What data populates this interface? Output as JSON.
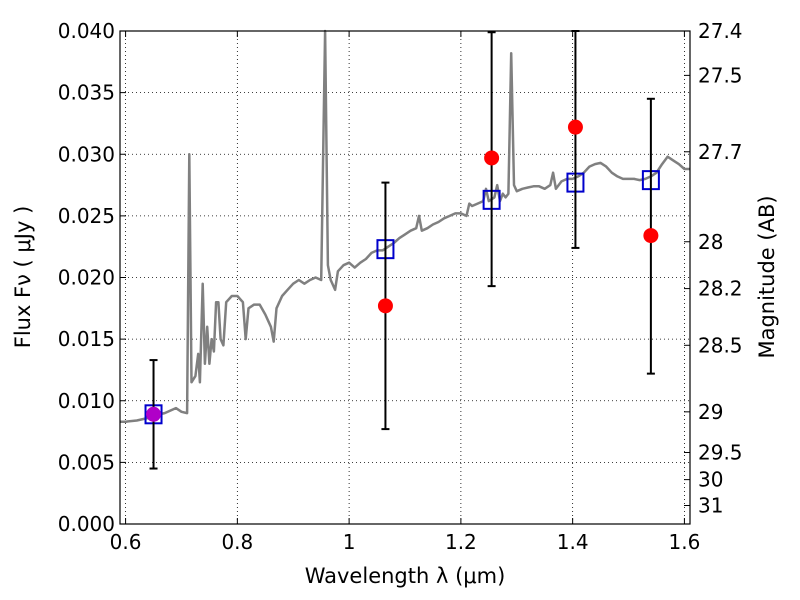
{
  "chart_data": {
    "type": "scatter",
    "xlabel": "Wavelength  λ (μm)",
    "ylabel": "Flux  Fν  ( μJy )",
    "ylabel_right": "Magnitude (AB)",
    "xlim": [
      0.59,
      1.61
    ],
    "ylim": [
      0.0,
      0.04
    ],
    "x_ticks": [
      0.6,
      0.8,
      1.0,
      1.2,
      1.4,
      1.6
    ],
    "x_tick_labels": [
      "0.6",
      "0.8",
      "1",
      "1.2",
      "1.4",
      "1.6"
    ],
    "y_ticks": [
      0.0,
      0.005,
      0.01,
      0.015,
      0.02,
      0.025,
      0.03,
      0.035,
      0.04
    ],
    "y_tick_labels": [
      "0.000",
      "0.005",
      "0.010",
      "0.015",
      "0.020",
      "0.025",
      "0.030",
      "0.035",
      "0.040"
    ],
    "mag_ticks": [
      {
        "label": "27.4",
        "flux": 0.04
      },
      {
        "label": "27.5",
        "flux": 0.0364
      },
      {
        "label": "27.7",
        "flux": 0.0302
      },
      {
        "label": "28",
        "flux": 0.0229
      },
      {
        "label": "28.2",
        "flux": 0.0191
      },
      {
        "label": "28.5",
        "flux": 0.0145
      },
      {
        "label": "29",
        "flux": 0.0091
      },
      {
        "label": "29.5",
        "flux": 0.0058
      },
      {
        "label": "30",
        "flux": 0.0036
      },
      {
        "label": "31",
        "flux": 0.0015
      }
    ],
    "grid": true,
    "series": [
      {
        "kind": "line",
        "color": "#808080",
        "points": [
          [
            0.59,
            0.0083
          ],
          [
            0.6,
            0.0083
          ],
          [
            0.62,
            0.0084
          ],
          [
            0.64,
            0.0086
          ],
          [
            0.65,
            0.0088
          ],
          [
            0.67,
            0.009
          ],
          [
            0.68,
            0.0092
          ],
          [
            0.69,
            0.0094
          ],
          [
            0.7,
            0.0091
          ],
          [
            0.71,
            0.009
          ],
          [
            0.714,
            0.03
          ],
          [
            0.718,
            0.0115
          ],
          [
            0.725,
            0.012
          ],
          [
            0.73,
            0.0138
          ],
          [
            0.733,
            0.0115
          ],
          [
            0.738,
            0.0195
          ],
          [
            0.742,
            0.013
          ],
          [
            0.746,
            0.016
          ],
          [
            0.75,
            0.013
          ],
          [
            0.754,
            0.015
          ],
          [
            0.758,
            0.014
          ],
          [
            0.762,
            0.018
          ],
          [
            0.766,
            0.018
          ],
          [
            0.77,
            0.015
          ],
          [
            0.775,
            0.0145
          ],
          [
            0.78,
            0.018
          ],
          [
            0.79,
            0.0185
          ],
          [
            0.8,
            0.0185
          ],
          [
            0.81,
            0.018
          ],
          [
            0.815,
            0.015
          ],
          [
            0.82,
            0.0175
          ],
          [
            0.83,
            0.0178
          ],
          [
            0.84,
            0.0178
          ],
          [
            0.85,
            0.017
          ],
          [
            0.86,
            0.016
          ],
          [
            0.865,
            0.0148
          ],
          [
            0.87,
            0.0175
          ],
          [
            0.88,
            0.0185
          ],
          [
            0.89,
            0.019
          ],
          [
            0.9,
            0.0195
          ],
          [
            0.91,
            0.0198
          ],
          [
            0.92,
            0.0195
          ],
          [
            0.93,
            0.0198
          ],
          [
            0.94,
            0.02
          ],
          [
            0.95,
            0.0198
          ],
          [
            0.957,
            0.04
          ],
          [
            0.962,
            0.021
          ],
          [
            0.967,
            0.0198
          ],
          [
            0.975,
            0.019
          ],
          [
            0.98,
            0.0205
          ],
          [
            0.99,
            0.021
          ],
          [
            1.0,
            0.0212
          ],
          [
            1.01,
            0.0208
          ],
          [
            1.02,
            0.0212
          ],
          [
            1.03,
            0.0215
          ],
          [
            1.04,
            0.022
          ],
          [
            1.05,
            0.0222
          ],
          [
            1.06,
            0.0222
          ],
          [
            1.07,
            0.0225
          ],
          [
            1.08,
            0.0228
          ],
          [
            1.09,
            0.0232
          ],
          [
            1.1,
            0.0235
          ],
          [
            1.11,
            0.0238
          ],
          [
            1.12,
            0.024
          ],
          [
            1.125,
            0.025
          ],
          [
            1.13,
            0.0238
          ],
          [
            1.14,
            0.024
          ],
          [
            1.15,
            0.0243
          ],
          [
            1.16,
            0.0245
          ],
          [
            1.17,
            0.0248
          ],
          [
            1.18,
            0.025
          ],
          [
            1.19,
            0.0252
          ],
          [
            1.2,
            0.0252
          ],
          [
            1.21,
            0.025
          ],
          [
            1.215,
            0.026
          ],
          [
            1.22,
            0.0258
          ],
          [
            1.23,
            0.026
          ],
          [
            1.24,
            0.0262
          ],
          [
            1.245,
            0.0272
          ],
          [
            1.25,
            0.0262
          ],
          [
            1.26,
            0.0265
          ],
          [
            1.265,
            0.0275
          ],
          [
            1.27,
            0.0262
          ],
          [
            1.275,
            0.0268
          ],
          [
            1.28,
            0.0265
          ],
          [
            1.285,
            0.0268
          ],
          [
            1.29,
            0.0382
          ],
          [
            1.295,
            0.0275
          ],
          [
            1.3,
            0.027
          ],
          [
            1.31,
            0.0272
          ],
          [
            1.32,
            0.0273
          ],
          [
            1.33,
            0.0274
          ],
          [
            1.34,
            0.0274
          ],
          [
            1.35,
            0.0272
          ],
          [
            1.36,
            0.0275
          ],
          [
            1.365,
            0.0285
          ],
          [
            1.37,
            0.0272
          ],
          [
            1.38,
            0.0278
          ],
          [
            1.39,
            0.028
          ],
          [
            1.4,
            0.028
          ],
          [
            1.41,
            0.0282
          ],
          [
            1.42,
            0.0285
          ],
          [
            1.43,
            0.029
          ],
          [
            1.44,
            0.0292
          ],
          [
            1.45,
            0.0293
          ],
          [
            1.46,
            0.029
          ],
          [
            1.47,
            0.0285
          ],
          [
            1.48,
            0.0282
          ],
          [
            1.49,
            0.028
          ],
          [
            1.5,
            0.028
          ],
          [
            1.51,
            0.028
          ],
          [
            1.52,
            0.0279
          ],
          [
            1.53,
            0.028
          ],
          [
            1.54,
            0.0282
          ],
          [
            1.55,
            0.0285
          ],
          [
            1.56,
            0.0292
          ],
          [
            1.57,
            0.0298
          ],
          [
            1.58,
            0.0295
          ],
          [
            1.59,
            0.0292
          ],
          [
            1.6,
            0.0288
          ],
          [
            1.61,
            0.0288
          ]
        ]
      },
      {
        "kind": "open-square",
        "color": "#0000cc",
        "points": [
          [
            0.65,
            0.0089
          ],
          [
            1.065,
            0.0223
          ],
          [
            1.255,
            0.0263
          ],
          [
            1.405,
            0.0277
          ],
          [
            1.54,
            0.0279
          ]
        ]
      },
      {
        "kind": "errorbar-circle",
        "color": "#ff0000",
        "points": [
          {
            "x": 0.65,
            "y": 0.0089,
            "low": 0.0045,
            "high": 0.0133,
            "color": "#b000c8"
          },
          {
            "x": 1.065,
            "y": 0.0177,
            "low": 0.0077,
            "high": 0.0277
          },
          {
            "x": 1.255,
            "y": 0.0297,
            "low": 0.0193,
            "high": 0.0399
          },
          {
            "x": 1.405,
            "y": 0.0322,
            "low": 0.0224,
            "high": 0.04
          },
          {
            "x": 1.54,
            "y": 0.0234,
            "low": 0.0122,
            "high": 0.0345
          }
        ]
      }
    ]
  }
}
